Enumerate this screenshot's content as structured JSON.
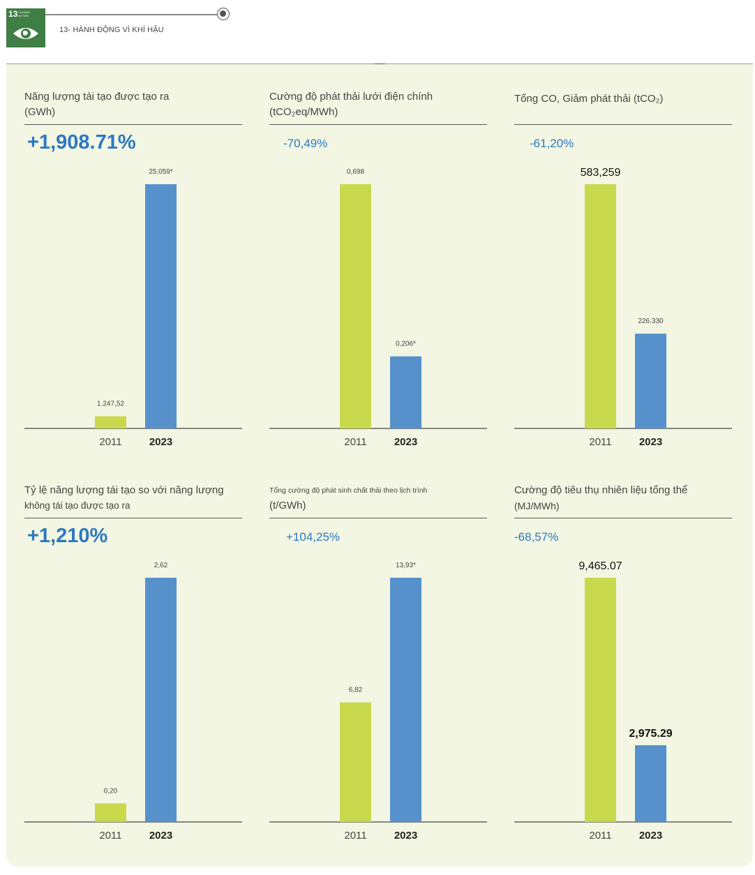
{
  "header": {
    "sdg_number": "13",
    "sdg_badge_text": "CLIMATE ACTION",
    "title": "13- HÀNH ĐỘNG VÌ KHÍ HẬU"
  },
  "colors": {
    "bar_2011": "#c8d94e",
    "bar_2023": "#5791cc",
    "accent": "#2d78c0",
    "panel": "#f2f6e2"
  },
  "cards": [
    {
      "id": "renewable",
      "title_line1": "Năng lượng tái tạo được tạo ra",
      "title_line2": "(GWh)",
      "change": "+1,908.71%"
    },
    {
      "id": "grid-intensity",
      "title_line1": "Cường độ phát thải lưới điện chính",
      "title_line2": "(tCO₂eq/MWh)",
      "change": "-70,49%"
    },
    {
      "id": "total-co",
      "title_line1": "Tổng CO, Giảm phát thải (tCO₂)",
      "title_line2": "",
      "change": "-61,20%"
    },
    {
      "id": "ratio",
      "title_line1": "Tỷ lệ năng lượng tái tạo so với năng lượng",
      "title_line2": "không tái tạo được tạo ra",
      "change": "+1,210%"
    },
    {
      "id": "waste-intensity",
      "title_line1": "Tổng cường độ phát sinh chất thải theo lịch trình",
      "title_line2": "(t/GWh)",
      "change": "+104,25%"
    },
    {
      "id": "fuel-intensity",
      "title_line1": "Cường độ tiêu thụ nhiên liệu tổng thể",
      "title_line2": "(MJ/MWh)",
      "change": "-68,57%"
    }
  ],
  "chart_data": [
    {
      "type": "bar",
      "title": "Năng lượng tái tạo được tạo ra (GWh)",
      "categories": [
        "2011",
        "2023"
      ],
      "values": [
        1247.52,
        25059
      ],
      "labels": [
        "1.247,52",
        "25.059*"
      ],
      "ylim": [
        0,
        25059
      ]
    },
    {
      "type": "bar",
      "title": "Cường độ phát thải lưới điện chính (tCO₂eq/MWh)",
      "categories": [
        "2011",
        "2023"
      ],
      "values": [
        0.698,
        0.206
      ],
      "labels": [
        "0,698",
        "0,206*"
      ],
      "ylim": [
        0,
        0.698
      ]
    },
    {
      "type": "bar",
      "title": "Tổng CO, Giảm phát thải (tCO₂)",
      "categories": [
        "2011",
        "2023"
      ],
      "values": [
        583259,
        226330
      ],
      "labels": [
        "583,259",
        "226.330"
      ],
      "ylim": [
        0,
        583259
      ]
    },
    {
      "type": "bar",
      "title": "Tỷ lệ năng lượng tái tạo so với năng lượng không tái tạo được tạo ra",
      "categories": [
        "2011",
        "2023"
      ],
      "values": [
        0.2,
        2.62
      ],
      "labels": [
        "0,20",
        "2,62"
      ],
      "ylim": [
        0,
        2.62
      ]
    },
    {
      "type": "bar",
      "title": "Tổng cường độ phát sinh chất thải theo lịch trình (t/GWh)",
      "categories": [
        "2011",
        "2023"
      ],
      "values": [
        6.82,
        13.93
      ],
      "labels": [
        "6,82",
        "13,93*"
      ],
      "ylim": [
        0,
        13.93
      ]
    },
    {
      "type": "bar",
      "title": "Cường độ tiêu thụ nhiên liệu tổng thể (MJ/MWh)",
      "categories": [
        "2011",
        "2023"
      ],
      "values": [
        9465.07,
        2975.29
      ],
      "labels": [
        "9,465.07",
        "2,975.29"
      ],
      "ylim": [
        0,
        9465.07
      ]
    }
  ]
}
